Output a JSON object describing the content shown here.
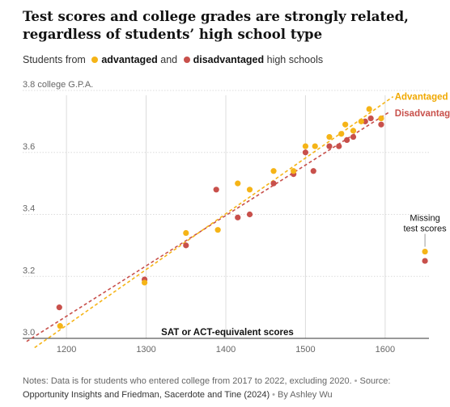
{
  "chart_data": {
    "type": "scatter",
    "title": "Test scores and college grades are strongly related, regardless of students’ high school type",
    "legend": {
      "prefix": "Students from",
      "items": [
        {
          "name": "advantaged",
          "color": "#f5b417"
        },
        {
          "name": "disadvantaged",
          "color": "#c8504b"
        }
      ],
      "joiner": "and",
      "suffix": "high schools",
      "placement": "top-left"
    },
    "xlabel": "SAT or ACT-equivalent scores",
    "ylabel": "college G.P.A.",
    "xlim": [
      1145,
      1655
    ],
    "ylim": [
      3.0,
      3.8
    ],
    "x_ticks": [
      1200,
      1300,
      1400,
      1500,
      1600
    ],
    "y_ticks": [
      3.0,
      3.2,
      3.4,
      3.6,
      3.8
    ],
    "y_tick_labels": [
      "3.0",
      "3.2",
      "3.4",
      "3.6",
      "3.8 college G.P.A."
    ],
    "grid": true,
    "series": [
      {
        "name": "Advantaged",
        "color": "#f5b417",
        "trend_label": "Advantaged",
        "trend": [
          [
            1160,
            2.97
          ],
          [
            1610,
            3.78
          ]
        ],
        "points": [
          [
            1192,
            3.04
          ],
          [
            1298,
            3.18
          ],
          [
            1350,
            3.34
          ],
          [
            1390,
            3.35
          ],
          [
            1415,
            3.5
          ],
          [
            1430,
            3.48
          ],
          [
            1460,
            3.54
          ],
          [
            1485,
            3.54
          ],
          [
            1500,
            3.62
          ],
          [
            1512,
            3.62
          ],
          [
            1530,
            3.65
          ],
          [
            1545,
            3.66
          ],
          [
            1550,
            3.69
          ],
          [
            1560,
            3.67
          ],
          [
            1570,
            3.7
          ],
          [
            1580,
            3.74
          ],
          [
            1595,
            3.71
          ]
        ],
        "missing": [
          1650,
          3.28
        ]
      },
      {
        "name": "Disadvantaged",
        "color": "#c8504b",
        "trend_label": "Disadvantaged",
        "trend": [
          [
            1150,
            2.99
          ],
          [
            1605,
            3.73
          ]
        ],
        "points": [
          [
            1191,
            3.1
          ],
          [
            1298,
            3.19
          ],
          [
            1350,
            3.3
          ],
          [
            1388,
            3.48
          ],
          [
            1415,
            3.39
          ],
          [
            1430,
            3.4
          ],
          [
            1460,
            3.5
          ],
          [
            1485,
            3.53
          ],
          [
            1500,
            3.6
          ],
          [
            1510,
            3.54
          ],
          [
            1530,
            3.62
          ],
          [
            1542,
            3.62
          ],
          [
            1552,
            3.64
          ],
          [
            1560,
            3.65
          ],
          [
            1575,
            3.7
          ],
          [
            1582,
            3.71
          ],
          [
            1595,
            3.69
          ]
        ],
        "missing": [
          1650,
          3.25
        ]
      }
    ],
    "annotation": "Missing test scores"
  },
  "notes": {
    "text": "Notes: Data is for students who entered college from 2017 to 2022, excluding 2020.",
    "source_label": "Source:",
    "source": "Opportunity Insights and Friedman, Sacerdote and Tine (2024)",
    "byline": "By Ashley Wu"
  }
}
